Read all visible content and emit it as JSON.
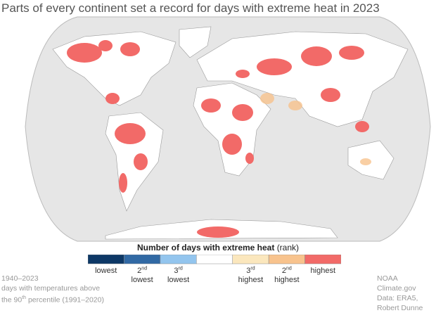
{
  "title": "Parts of every continent set a record for days with extreme heat in 2023",
  "legend": {
    "title": "Number of days with extreme heat",
    "title_note": "(rank)",
    "items": [
      {
        "color": "#0d3866",
        "label": {
          "rank": null,
          "suffix": null,
          "word": "lowest"
        }
      },
      {
        "color": "#3169a4",
        "label": {
          "rank": "2",
          "suffix": "nd",
          "word": "lowest"
        }
      },
      {
        "color": "#93c5ee",
        "label": {
          "rank": "3",
          "suffix": "rd",
          "word": "lowest"
        }
      },
      {
        "color": "#ffffff",
        "label": null
      },
      {
        "color": "#fbe7bd",
        "label": {
          "rank": "3",
          "suffix": "rd",
          "word": "highest"
        }
      },
      {
        "color": "#f8c38d",
        "label": {
          "rank": "2",
          "suffix": "nd",
          "word": "highest"
        }
      },
      {
        "color": "#f26a68",
        "label": {
          "rank": null,
          "suffix": null,
          "word": "highest"
        }
      }
    ]
  },
  "footnote_left": [
    "1940–2023",
    "days with temperatures above",
    {
      "pre": "the 90",
      "sup": "th",
      "post": " percentile (1991–2020)"
    }
  ],
  "footnote_right": [
    "NOAA Climate.gov",
    "Data: ERA5,",
    "Robert Dunne"
  ]
}
